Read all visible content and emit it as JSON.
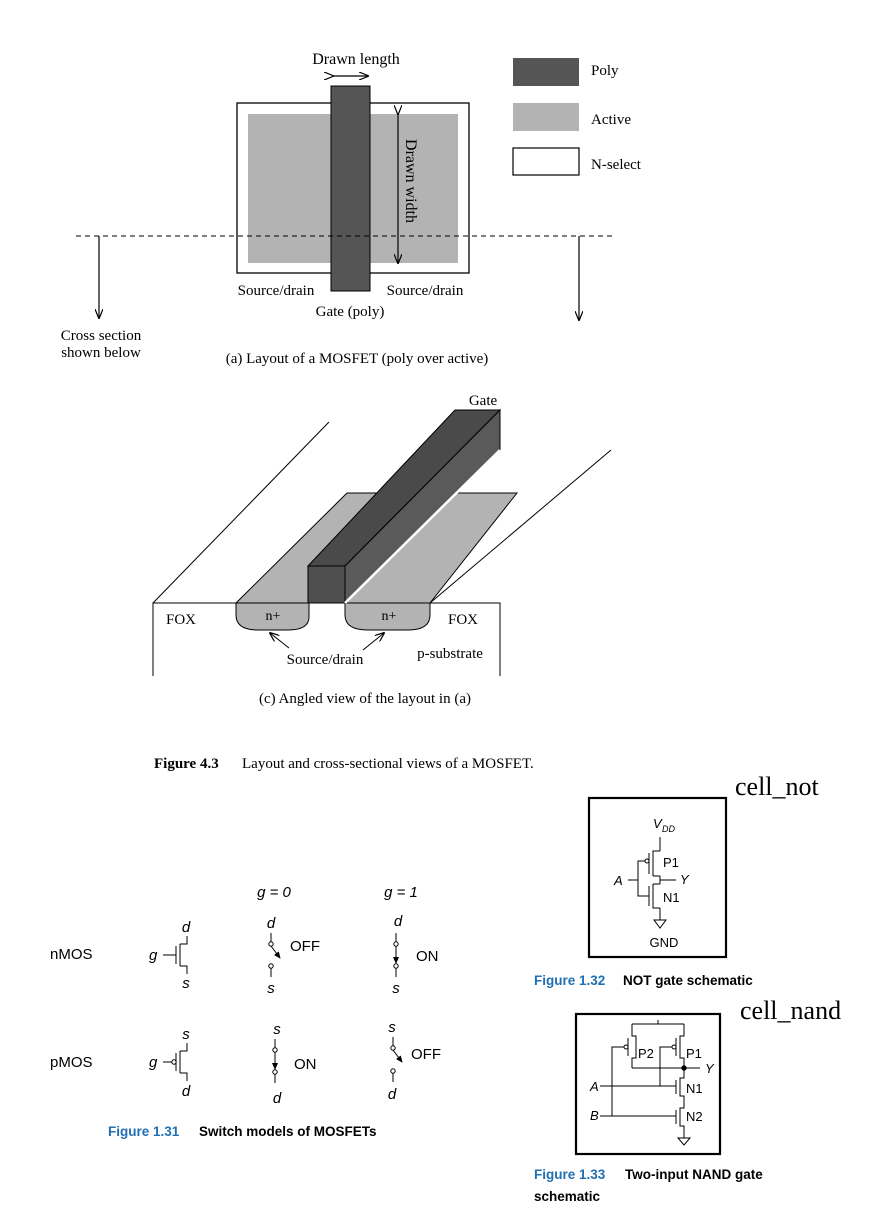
{
  "fig43": {
    "layout": {
      "drawn_length": "Drawn length",
      "drawn_width": "Drawn width",
      "source_drain_left": "Source/drain",
      "source_drain_right": "Source/drain",
      "gate_poly": "Gate (poly)",
      "cross_section_1": "Cross section",
      "cross_section_2": "shown below",
      "caption": "(a) Layout of a MOSFET (poly over active)",
      "legend": [
        {
          "label": "Poly",
          "color": "#555555"
        },
        {
          "label": "Active",
          "color": "#b3b3b3"
        },
        {
          "label": "N-select",
          "color": "#ffffff"
        }
      ]
    },
    "angled": {
      "gate": "Gate",
      "fox_left": "FOX",
      "fox_right": "FOX",
      "n_plus_left": "n+",
      "n_plus_right": "n+",
      "source_drain": "Source/drain",
      "p_substrate": "p-substrate",
      "caption": "(c) Angled view of the layout in (a)"
    },
    "caption_num": "Figure 4.3",
    "caption_text": "Layout and cross-sectional views of a MOSFET."
  },
  "fig131": {
    "col_g0": "g = 0",
    "col_g1": "g = 1",
    "nmos": "nMOS",
    "pmos": "pMOS",
    "g": "g",
    "d": "d",
    "s": "s",
    "off": "OFF",
    "on": "ON",
    "caption_num": "Figure 1.31",
    "caption_text": "Switch models of MOSFETs"
  },
  "fig132": {
    "cell_name": "cell_not",
    "vdd": "V",
    "vdd_sub": "DD",
    "p1": "P1",
    "n1": "N1",
    "a": "A",
    "y": "Y",
    "gnd": "GND",
    "caption_num": "Figure 1.32",
    "caption_text": "NOT gate schematic"
  },
  "fig133": {
    "cell_name": "cell_nand",
    "p1": "P1",
    "p2": "P2",
    "n1": "N1",
    "n2": "N2",
    "a": "A",
    "b": "B",
    "y": "Y",
    "caption_num": "Figure 1.33",
    "caption_line1": "Two-input NAND gate",
    "caption_line2": "schematic"
  },
  "colors": {
    "poly": "#555555",
    "active": "#b3b3b3",
    "caption_blue": "#1f6fb2"
  }
}
